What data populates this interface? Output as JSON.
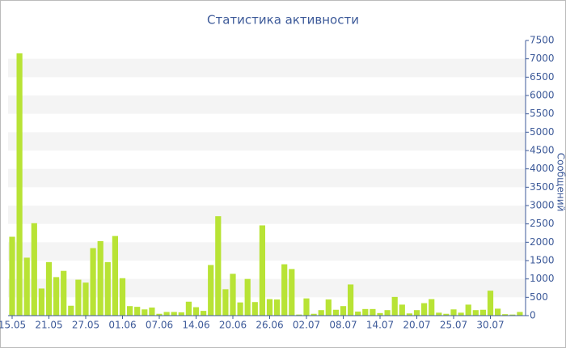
{
  "chart_data": {
    "type": "bar",
    "title": "Статистика активности",
    "y_axis_label": "Сообщений",
    "categories": [
      "15.05",
      null,
      null,
      null,
      null,
      "21.05",
      null,
      null,
      null,
      null,
      "27.05",
      null,
      null,
      null,
      null,
      "01.06",
      null,
      null,
      null,
      null,
      "07.06",
      null,
      null,
      null,
      null,
      "14.06",
      null,
      null,
      null,
      null,
      "20.06",
      null,
      null,
      null,
      null,
      "26.06",
      null,
      null,
      null,
      null,
      "02.07",
      null,
      null,
      null,
      null,
      "08.07",
      null,
      null,
      null,
      null,
      "14.07",
      null,
      null,
      null,
      null,
      "20.07",
      null,
      null,
      null,
      null,
      "25.07",
      null,
      null,
      null,
      null,
      "30.07",
      null,
      null,
      null,
      null
    ],
    "values": [
      2150,
      7150,
      1580,
      2520,
      740,
      1460,
      1050,
      1220,
      270,
      980,
      900,
      1840,
      2030,
      1460,
      2170,
      1020,
      260,
      240,
      170,
      220,
      50,
      100,
      100,
      90,
      380,
      230,
      130,
      1380,
      2710,
      720,
      1140,
      360,
      1000,
      370,
      2460,
      450,
      440,
      1400,
      1270,
      30,
      470,
      50,
      150,
      440,
      160,
      260,
      850,
      110,
      180,
      180,
      70,
      150,
      510,
      300,
      60,
      150,
      340,
      450,
      80,
      50,
      170,
      80,
      300,
      150,
      160,
      680,
      190,
      40,
      30,
      100
    ],
    "color": "#b8e335",
    "ylim": [
      0,
      7500
    ],
    "yticks": [
      0,
      500,
      1000,
      1500,
      2000,
      2500,
      3000,
      3500,
      4000,
      4500,
      5000,
      5500,
      6000,
      6500,
      7000,
      7500
    ],
    "grid": true
  }
}
